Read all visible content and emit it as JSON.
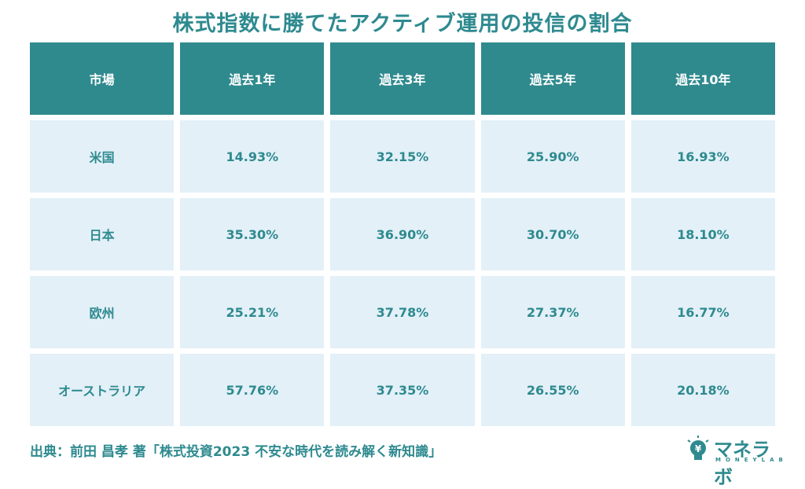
{
  "header": {
    "title": "株式指数に勝てたアクティブ運用の投信の割合"
  },
  "table": {
    "columns": [
      "市場",
      "過去1年",
      "過去3年",
      "過去5年",
      "過去10年"
    ],
    "rows": [
      [
        "米国",
        "14.93%",
        "32.15%",
        "25.90%",
        "16.93%"
      ],
      [
        "日本",
        "35.30%",
        "36.90%",
        "30.70%",
        "18.10%"
      ],
      [
        "欧州",
        "25.21%",
        "37.78%",
        "27.37%",
        "16.77%"
      ],
      [
        "オーストラリア",
        "57.76%",
        "37.35%",
        "26.55%",
        "20.18%"
      ]
    ]
  },
  "footer": {
    "source": "出典：前田 昌孝 著「株式投資2023 不安な時代を読み解く新知識」",
    "logo": "マネラボ",
    "logo_sub": "MONEYLAB"
  }
}
